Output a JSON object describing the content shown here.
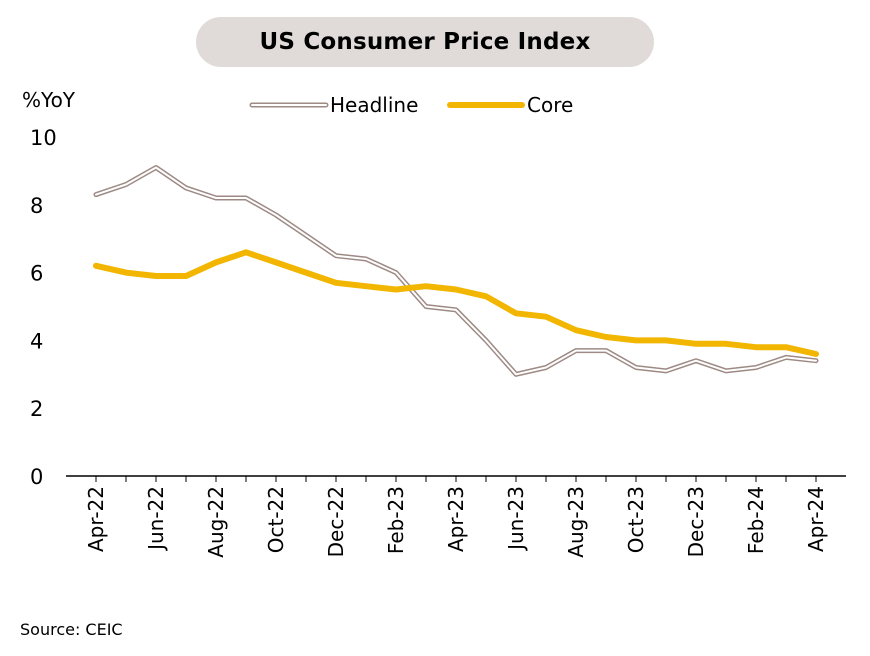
{
  "chart_data": {
    "type": "line",
    "title": "US Consumer Price Index",
    "ylabel": "%YoY",
    "source": "Source: CEIC",
    "ylim": [
      0,
      10
    ],
    "yticks": [
      0,
      2,
      4,
      6,
      8,
      10
    ],
    "legend_position": "top",
    "x": [
      "Apr-22",
      "May-22",
      "Jun-22",
      "Jul-22",
      "Aug-22",
      "Sep-22",
      "Oct-22",
      "Nov-22",
      "Dec-22",
      "Jan-23",
      "Feb-23",
      "Mar-23",
      "Apr-23",
      "May-23",
      "Jun-23",
      "Jul-23",
      "Aug-23",
      "Sep-23",
      "Oct-23",
      "Nov-23",
      "Dec-23",
      "Jan-24",
      "Feb-24",
      "Mar-24",
      "Apr-24"
    ],
    "xtick_labels": [
      "Apr-22",
      "Jun-22",
      "Aug-22",
      "Oct-22",
      "Dec-22",
      "Feb-23",
      "Apr-23",
      "Jun-23",
      "Aug-23",
      "Oct-23",
      "Dec-23",
      "Feb-24",
      "Apr-24"
    ],
    "series": [
      {
        "name": "Headline",
        "color": "#9e8a84",
        "style": "double-line",
        "values": [
          8.3,
          8.6,
          9.1,
          8.5,
          8.2,
          8.2,
          7.7,
          7.1,
          6.5,
          6.4,
          6.0,
          5.0,
          4.9,
          4.0,
          3.0,
          3.2,
          3.7,
          3.7,
          3.2,
          3.1,
          3.4,
          3.1,
          3.2,
          3.5,
          3.4
        ]
      },
      {
        "name": "Core",
        "color": "#f2b600",
        "style": "thick-line",
        "values": [
          6.2,
          6.0,
          5.9,
          5.9,
          6.3,
          6.6,
          6.3,
          6.0,
          5.7,
          5.6,
          5.5,
          5.6,
          5.5,
          5.3,
          4.8,
          4.7,
          4.3,
          4.1,
          4.0,
          4.0,
          3.9,
          3.9,
          3.8,
          3.8,
          3.6
        ]
      }
    ]
  }
}
